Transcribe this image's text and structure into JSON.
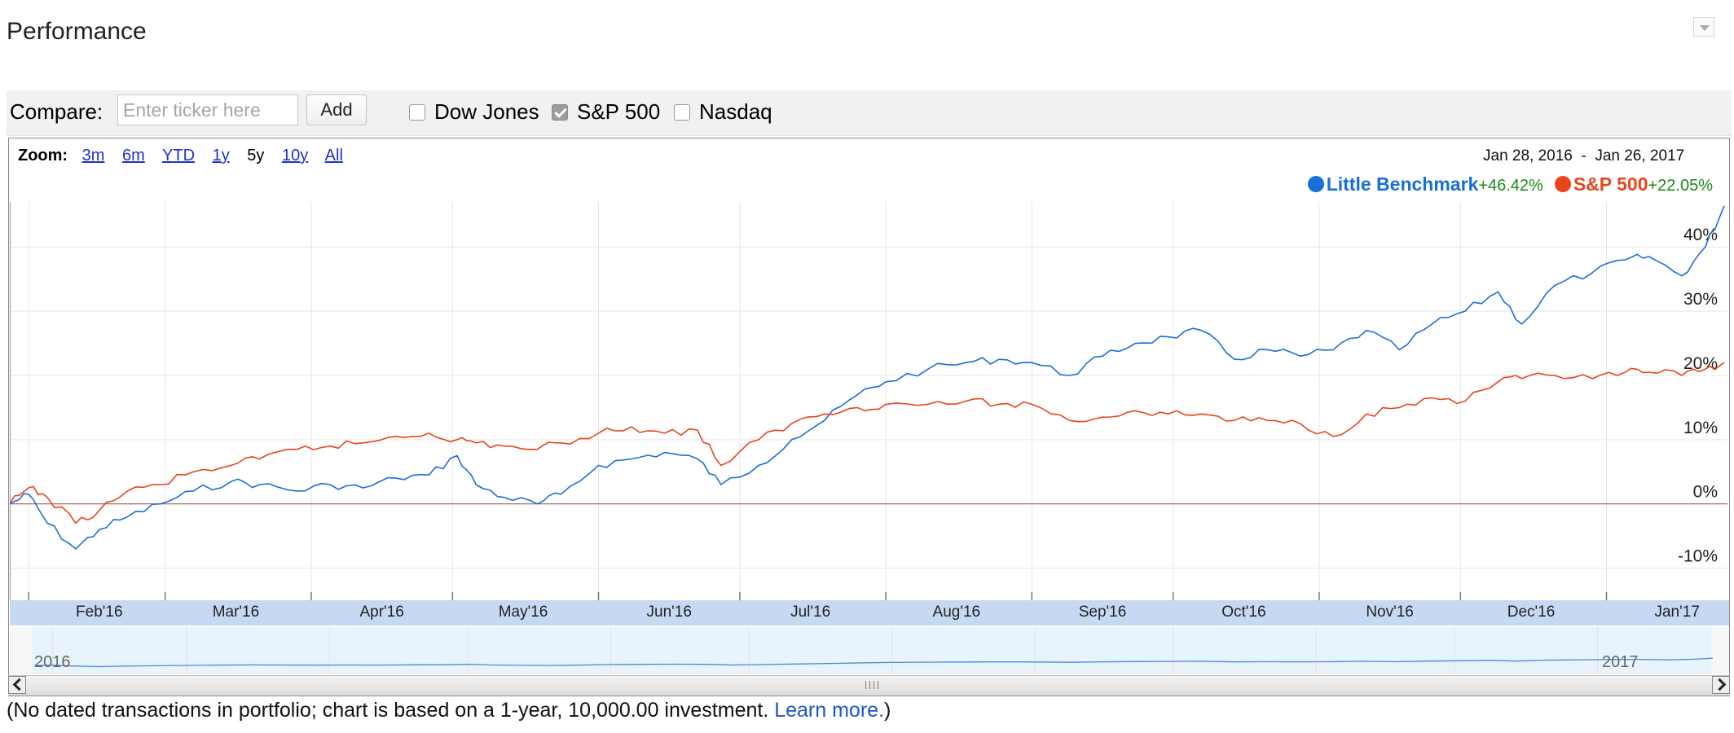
{
  "header": {
    "title": "Performance"
  },
  "compare": {
    "label": "Compare:",
    "input_placeholder": "Enter ticker here",
    "add_label": "Add",
    "indices": [
      {
        "label": "Dow Jones",
        "checked": false
      },
      {
        "label": "S&P 500",
        "checked": true
      },
      {
        "label": "Nasdaq",
        "checked": false
      }
    ]
  },
  "zoom": {
    "label": "Zoom:",
    "options": [
      "3m",
      "6m",
      "YTD",
      "1y",
      "5y",
      "10y",
      "All"
    ],
    "active": "5y"
  },
  "date_range": {
    "start": "Jan 28, 2016",
    "sep": "-",
    "end": "Jan 26, 2017"
  },
  "legend": [
    {
      "name": "Little Benchmark",
      "change": "+46.42%",
      "color": "#1a6fd6"
    },
    {
      "name": "S&P 500",
      "change": "+22.05%",
      "color": "#e8441e"
    }
  ],
  "chart_data": {
    "type": "line",
    "x_range": [
      "2016-01-28",
      "2017-01-26"
    ],
    "y_unit": "%",
    "ylim": [
      -15,
      47
    ],
    "yticks": [
      -10,
      0,
      10,
      20,
      30,
      40
    ],
    "ytick_labels": [
      "-10%",
      "0%",
      "10%",
      "20%",
      "30%",
      "40%"
    ],
    "xtick_labels": [
      "Feb'16",
      "Mar'16",
      "Apr'16",
      "May'16",
      "Jun'16",
      "Jul'16",
      "Aug'16",
      "Sep'16",
      "Oct'16",
      "Nov'16",
      "Dec'16",
      "Jan'17"
    ],
    "grid": true,
    "legend_placement": "top-right",
    "series": [
      {
        "name": "Little Benchmark",
        "color": "#1a6fd6",
        "points": [
          [
            "2016-01-28",
            0
          ],
          [
            "2016-02-01",
            1.5
          ],
          [
            "2016-02-05",
            -3
          ],
          [
            "2016-02-11",
            -7
          ],
          [
            "2016-02-16",
            -4
          ],
          [
            "2016-02-22",
            -2
          ],
          [
            "2016-02-29",
            0
          ],
          [
            "2016-03-07",
            2
          ],
          [
            "2016-03-15",
            3.5
          ],
          [
            "2016-03-21",
            3
          ],
          [
            "2016-03-29",
            2
          ],
          [
            "2016-04-05",
            3
          ],
          [
            "2016-04-12",
            2.5
          ],
          [
            "2016-04-19",
            4
          ],
          [
            "2016-04-26",
            4.5
          ],
          [
            "2016-05-02",
            7.5
          ],
          [
            "2016-05-06",
            3
          ],
          [
            "2016-05-12",
            1
          ],
          [
            "2016-05-19",
            0
          ],
          [
            "2016-05-24",
            1.5
          ],
          [
            "2016-06-01",
            6
          ],
          [
            "2016-06-08",
            7
          ],
          [
            "2016-06-15",
            8
          ],
          [
            "2016-06-22",
            7
          ],
          [
            "2016-06-27",
            3
          ],
          [
            "2016-07-05",
            6
          ],
          [
            "2016-07-12",
            10
          ],
          [
            "2016-07-19",
            13
          ],
          [
            "2016-07-26",
            17
          ],
          [
            "2016-08-01",
            19
          ],
          [
            "2016-08-10",
            21
          ],
          [
            "2016-08-18",
            22
          ],
          [
            "2016-08-25",
            22.5
          ],
          [
            "2016-09-01",
            22
          ],
          [
            "2016-09-09",
            20
          ],
          [
            "2016-09-16",
            23
          ],
          [
            "2016-09-23",
            25
          ],
          [
            "2016-09-30",
            26
          ],
          [
            "2016-10-07",
            27
          ],
          [
            "2016-10-14",
            22.5
          ],
          [
            "2016-10-21",
            24
          ],
          [
            "2016-10-28",
            23
          ],
          [
            "2016-11-04",
            24
          ],
          [
            "2016-11-11",
            27
          ],
          [
            "2016-11-18",
            24
          ],
          [
            "2016-11-25",
            28
          ],
          [
            "2016-12-02",
            30
          ],
          [
            "2016-12-09",
            33
          ],
          [
            "2016-12-14",
            28
          ],
          [
            "2016-12-21",
            34
          ],
          [
            "2016-12-29",
            36
          ],
          [
            "2017-01-05",
            38
          ],
          [
            "2017-01-10",
            38.5
          ],
          [
            "2017-01-17",
            35.5
          ],
          [
            "2017-01-22",
            40
          ],
          [
            "2017-01-26",
            46.4
          ]
        ]
      },
      {
        "name": "S&P 500",
        "color": "#e8441e",
        "points": [
          [
            "2016-01-28",
            0
          ],
          [
            "2016-02-01",
            2.5
          ],
          [
            "2016-02-05",
            1
          ],
          [
            "2016-02-11",
            -3
          ],
          [
            "2016-02-16",
            -1
          ],
          [
            "2016-02-22",
            2
          ],
          [
            "2016-02-29",
            3
          ],
          [
            "2016-03-07",
            5
          ],
          [
            "2016-03-15",
            6
          ],
          [
            "2016-03-21",
            7
          ],
          [
            "2016-03-29",
            8.5
          ],
          [
            "2016-04-05",
            9
          ],
          [
            "2016-04-12",
            9.5
          ],
          [
            "2016-04-19",
            10.5
          ],
          [
            "2016-04-26",
            11
          ],
          [
            "2016-05-02",
            10
          ],
          [
            "2016-05-06",
            9.5
          ],
          [
            "2016-05-12",
            9
          ],
          [
            "2016-05-19",
            8.5
          ],
          [
            "2016-05-24",
            9.5
          ],
          [
            "2016-06-01",
            11
          ],
          [
            "2016-06-08",
            12
          ],
          [
            "2016-06-15",
            11
          ],
          [
            "2016-06-22",
            11.5
          ],
          [
            "2016-06-27",
            6
          ],
          [
            "2016-07-05",
            10
          ],
          [
            "2016-07-12",
            12.5
          ],
          [
            "2016-07-19",
            14
          ],
          [
            "2016-07-26",
            15
          ],
          [
            "2016-08-01",
            15.5
          ],
          [
            "2016-08-10",
            15.5
          ],
          [
            "2016-08-18",
            16
          ],
          [
            "2016-08-25",
            15.5
          ],
          [
            "2016-09-01",
            15.5
          ],
          [
            "2016-09-09",
            13
          ],
          [
            "2016-09-16",
            13.5
          ],
          [
            "2016-09-23",
            14.5
          ],
          [
            "2016-09-30",
            14
          ],
          [
            "2016-10-07",
            14
          ],
          [
            "2016-10-14",
            13
          ],
          [
            "2016-10-21",
            13
          ],
          [
            "2016-10-28",
            12.5
          ],
          [
            "2016-11-04",
            10.5
          ],
          [
            "2016-11-11",
            14
          ],
          [
            "2016-11-18",
            15
          ],
          [
            "2016-11-25",
            16.5
          ],
          [
            "2016-12-02",
            16
          ],
          [
            "2016-12-09",
            19
          ],
          [
            "2016-12-14",
            19.5
          ],
          [
            "2016-12-21",
            20
          ],
          [
            "2016-12-29",
            19.5
          ],
          [
            "2017-01-05",
            20.5
          ],
          [
            "2017-01-10",
            20.5
          ],
          [
            "2017-01-17",
            20
          ],
          [
            "2017-01-22",
            21
          ],
          [
            "2017-01-26",
            22
          ]
        ]
      }
    ]
  },
  "navigator": {
    "year_start": "2016",
    "year_end": "2017"
  },
  "footnote": {
    "text": "(No dated transactions in portfolio; chart is based on a 1-year, 10,000.00 investment. ",
    "link": "Learn more.",
    "close": ")"
  }
}
